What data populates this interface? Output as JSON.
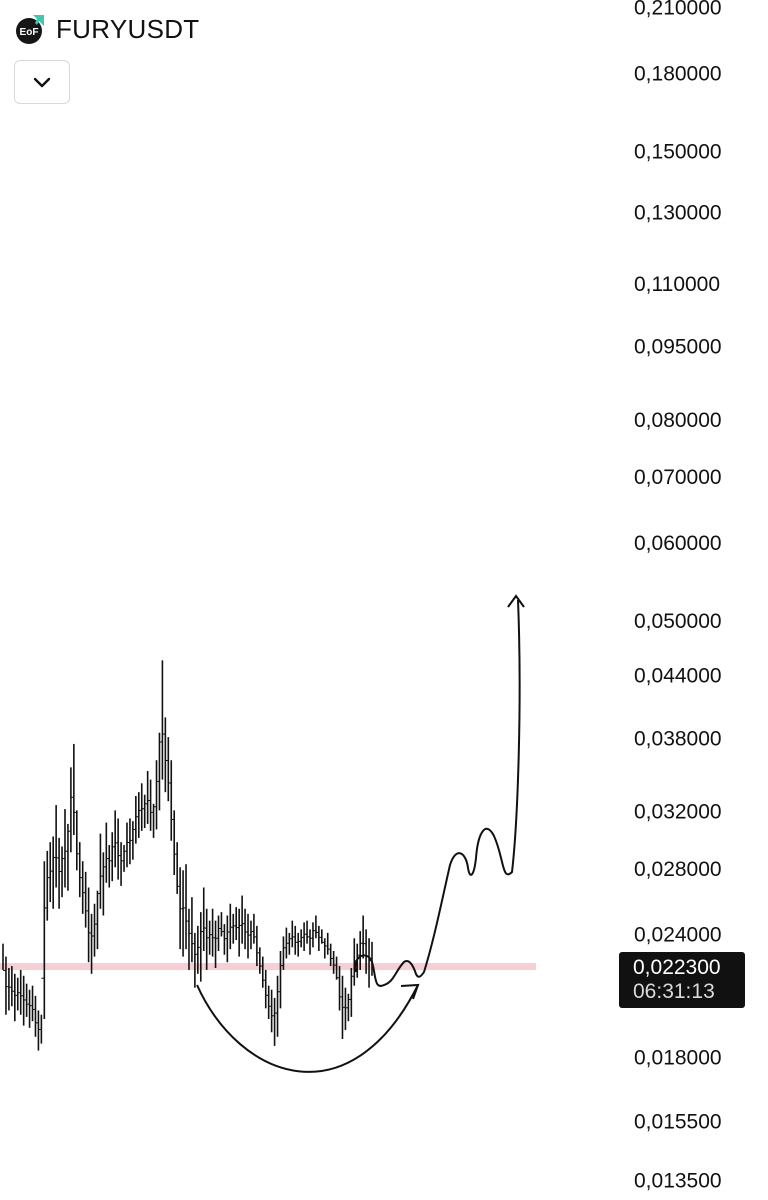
{
  "header": {
    "symbol": "FURYUSDT",
    "logo_icon": "eof-logo-icon",
    "dropdown_icon": "chevron-down-icon"
  },
  "current_price": {
    "value": "0,022300",
    "countdown": "06:31:13",
    "line_value": 0.0223
  },
  "chart_data": {
    "type": "candlestick",
    "scale": "log",
    "ylim": [
      0.0129,
      0.2138
    ],
    "yticks": [
      {
        "label": "0,210000",
        "value": 0.21
      },
      {
        "label": "0,180000",
        "value": 0.18
      },
      {
        "label": "0,150000",
        "value": 0.15
      },
      {
        "label": "0,130000",
        "value": 0.13
      },
      {
        "label": "0,110000",
        "value": 0.11
      },
      {
        "label": "0,095000",
        "value": 0.095
      },
      {
        "label": "0,080000",
        "value": 0.08
      },
      {
        "label": "0,070000",
        "value": 0.07
      },
      {
        "label": "0,060000",
        "value": 0.06
      },
      {
        "label": "0,050000",
        "value": 0.05
      },
      {
        "label": "0,044000",
        "value": 0.044
      },
      {
        "label": "0,038000",
        "value": 0.038
      },
      {
        "label": "0,032000",
        "value": 0.032
      },
      {
        "label": "0,028000",
        "value": 0.028
      },
      {
        "label": "0,024000",
        "value": 0.024
      },
      {
        "label": "0,018000",
        "value": 0.018
      },
      {
        "label": "0,015500",
        "value": 0.0155
      },
      {
        "label": "0,013500",
        "value": 0.0135
      }
    ],
    "candles": [
      [
        0.0235,
        0.0221
      ],
      [
        0.0228,
        0.0199
      ],
      [
        0.0222,
        0.0201
      ],
      [
        0.0223,
        0.0203
      ],
      [
        0.0219,
        0.0196
      ],
      [
        0.0217,
        0.0201
      ],
      [
        0.0221,
        0.0199
      ],
      [
        0.0218,
        0.0194
      ],
      [
        0.0214,
        0.0198
      ],
      [
        0.0211,
        0.0193
      ],
      [
        0.0213,
        0.0196
      ],
      [
        0.0208,
        0.0189
      ],
      [
        0.0201,
        0.0183
      ],
      [
        0.0199,
        0.0186
      ],
      [
        0.0285,
        0.0197
      ],
      [
        0.0292,
        0.0248
      ],
      [
        0.0298,
        0.0259
      ],
      [
        0.0302,
        0.0255
      ],
      [
        0.0325,
        0.0268
      ],
      [
        0.0301,
        0.0255
      ],
      [
        0.0295,
        0.0262
      ],
      [
        0.0322,
        0.0268
      ],
      [
        0.0311,
        0.0266
      ],
      [
        0.0355,
        0.0291
      ],
      [
        0.0375,
        0.0303
      ],
      [
        0.0321,
        0.0279
      ],
      [
        0.0298,
        0.0262
      ],
      [
        0.0285,
        0.0252
      ],
      [
        0.0278,
        0.0244
      ],
      [
        0.0268,
        0.0225
      ],
      [
        0.0252,
        0.0219
      ],
      [
        0.0258,
        0.0228
      ],
      [
        0.0266,
        0.0232
      ],
      [
        0.0304,
        0.0255
      ],
      [
        0.0291,
        0.0251
      ],
      [
        0.0312,
        0.0271
      ],
      [
        0.0296,
        0.0268
      ],
      [
        0.0305,
        0.0272
      ],
      [
        0.0321,
        0.0281
      ],
      [
        0.0315,
        0.0273
      ],
      [
        0.0298,
        0.0269
      ],
      [
        0.0296,
        0.0278
      ],
      [
        0.0312,
        0.0281
      ],
      [
        0.0315,
        0.0283
      ],
      [
        0.0313,
        0.0286
      ],
      [
        0.0332,
        0.0297
      ],
      [
        0.0335,
        0.0301
      ],
      [
        0.0342,
        0.0306
      ],
      [
        0.0333,
        0.0308
      ],
      [
        0.0352,
        0.0311
      ],
      [
        0.0345,
        0.0306
      ],
      [
        0.0326,
        0.0301
      ],
      [
        0.0361,
        0.0307
      ],
      [
        0.0385,
        0.0321
      ],
      [
        0.0456,
        0.0345
      ],
      [
        0.0399,
        0.0335
      ],
      [
        0.0381,
        0.0328
      ],
      [
        0.0361,
        0.0299
      ],
      [
        0.0321,
        0.0276
      ],
      [
        0.0298,
        0.0264
      ],
      [
        0.0281,
        0.0232
      ],
      [
        0.0279,
        0.0228
      ],
      [
        0.0283,
        0.0232
      ],
      [
        0.0255,
        0.0221
      ],
      [
        0.0262,
        0.0225
      ],
      [
        0.0241,
        0.0212
      ],
      [
        0.0245,
        0.0219
      ],
      [
        0.0253,
        0.0215
      ],
      [
        0.0268,
        0.0231
      ],
      [
        0.0255,
        0.0221
      ],
      [
        0.0248,
        0.0229
      ],
      [
        0.0255,
        0.0228
      ],
      [
        0.0248,
        0.0222
      ],
      [
        0.0251,
        0.0231
      ],
      [
        0.0253,
        0.0239
      ],
      [
        0.0246,
        0.0229
      ],
      [
        0.0251,
        0.0225
      ],
      [
        0.0258,
        0.0232
      ],
      [
        0.0252,
        0.0235
      ],
      [
        0.0256,
        0.0237
      ],
      [
        0.0255,
        0.0228
      ],
      [
        0.0263,
        0.0235
      ],
      [
        0.0255,
        0.0232
      ],
      [
        0.0252,
        0.0227
      ],
      [
        0.0248,
        0.0232
      ],
      [
        0.0252,
        0.0235
      ],
      [
        0.0245,
        0.0223
      ],
      [
        0.0233,
        0.0219
      ],
      [
        0.0228,
        0.0212
      ],
      [
        0.0221,
        0.0202
      ],
      [
        0.0213,
        0.0197
      ],
      [
        0.0211,
        0.0191
      ],
      [
        0.0207,
        0.0185
      ],
      [
        0.0218,
        0.0189
      ],
      [
        0.0231,
        0.0202
      ],
      [
        0.0239,
        0.0221
      ],
      [
        0.0244,
        0.0227
      ],
      [
        0.0241,
        0.0229
      ],
      [
        0.0248,
        0.0233
      ],
      [
        0.0245,
        0.0229
      ],
      [
        0.0241,
        0.0228
      ],
      [
        0.0243,
        0.0233
      ],
      [
        0.0247,
        0.0231
      ],
      [
        0.0248,
        0.0235
      ],
      [
        0.0243,
        0.0229
      ],
      [
        0.0247,
        0.0233
      ],
      [
        0.0251,
        0.0238
      ],
      [
        0.0245,
        0.0231
      ],
      [
        0.0243,
        0.0235
      ],
      [
        0.0238,
        0.0227
      ],
      [
        0.0241,
        0.0229
      ],
      [
        0.0235,
        0.0223
      ],
      [
        0.0231,
        0.0219
      ],
      [
        0.0228,
        0.0216
      ],
      [
        0.0223,
        0.0201
      ],
      [
        0.0218,
        0.0188
      ],
      [
        0.0212,
        0.0192
      ],
      [
        0.0209,
        0.0196
      ],
      [
        0.0222,
        0.0198
      ],
      [
        0.0238,
        0.0213
      ],
      [
        0.0235,
        0.0217
      ],
      [
        0.0242,
        0.0221
      ],
      [
        0.0251,
        0.0227
      ],
      [
        0.0243,
        0.0219
      ],
      [
        0.0238,
        0.0212
      ],
      [
        0.0236,
        0.0218
      ]
    ]
  }
}
